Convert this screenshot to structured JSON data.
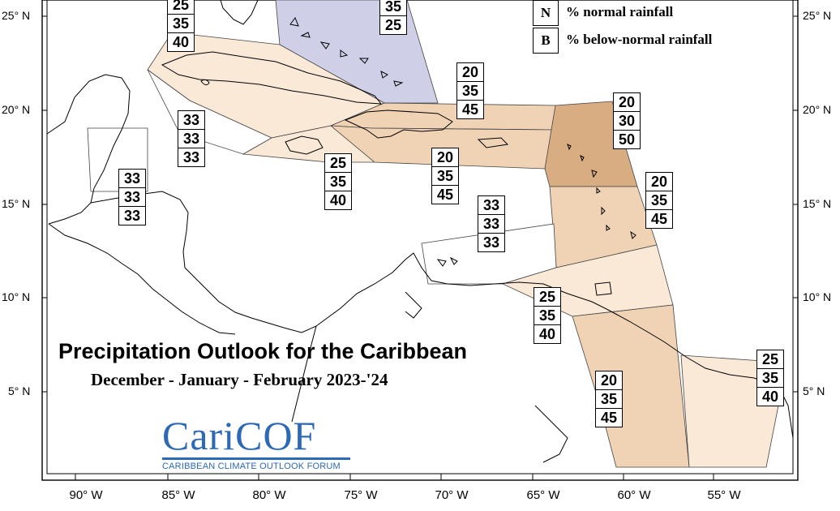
{
  "title": "Precipitation Outlook for the Caribbean",
  "subtitle": "December - January - February 2023-'24",
  "legend": [
    {
      "key": "N",
      "label": "% normal rainfall"
    },
    {
      "key": "B",
      "label": "% below-normal rainfall"
    }
  ],
  "logo": {
    "name_part1": "Cari",
    "name_part2": "COF",
    "tagline": "CARIBBEAN CLIMATE OUTLOOK FORUM"
  },
  "latitude_labels": [
    "25° N",
    "20° N",
    "15° N",
    "10° N",
    "5° N"
  ],
  "longitude_labels": [
    "90° W",
    "85° W",
    "80° W",
    "75° W",
    "70° W",
    "65° W",
    "60° W",
    "55° W"
  ],
  "zones": [
    {
      "id": "bahamas",
      "values": [
        "35",
        "25"
      ],
      "fill": "#cfd0e8"
    },
    {
      "id": "cuba",
      "values": [
        "25",
        "35",
        "40"
      ],
      "fill": "#fbe9d8"
    },
    {
      "id": "western-caribbean",
      "values": [
        "33",
        "33",
        "33"
      ],
      "fill": "#ffffff"
    },
    {
      "id": "belize",
      "values": [
        "33",
        "33",
        "33"
      ],
      "fill": "#ffffff"
    },
    {
      "id": "jamaica",
      "values": [
        "25",
        "35",
        "40"
      ],
      "fill": "#fbe9d8"
    },
    {
      "id": "hispaniola-puerto-rico-north",
      "values": [
        "20",
        "35",
        "45"
      ],
      "fill": "#f0d3b5"
    },
    {
      "id": "hispaniola-south",
      "values": [
        "20",
        "35",
        "45"
      ],
      "fill": "#f0d3b5"
    },
    {
      "id": "leeward-islands",
      "values": [
        "20",
        "30",
        "50"
      ],
      "fill": "#d9ad82"
    },
    {
      "id": "windward-islands",
      "values": [
        "20",
        "35",
        "45"
      ],
      "fill": "#f0d3b5"
    },
    {
      "id": "abc-islands",
      "values": [
        "33",
        "33",
        "33"
      ],
      "fill": "#ffffff"
    },
    {
      "id": "trinidad-tobago",
      "values": [
        "25",
        "35",
        "40"
      ],
      "fill": "#fbe9d8"
    },
    {
      "id": "guyana",
      "values": [
        "20",
        "35",
        "45"
      ],
      "fill": "#f0d3b5"
    },
    {
      "id": "suriname-french-guiana",
      "values": [
        "25",
        "35",
        "40"
      ],
      "fill": "#fbe9d8"
    }
  ]
}
